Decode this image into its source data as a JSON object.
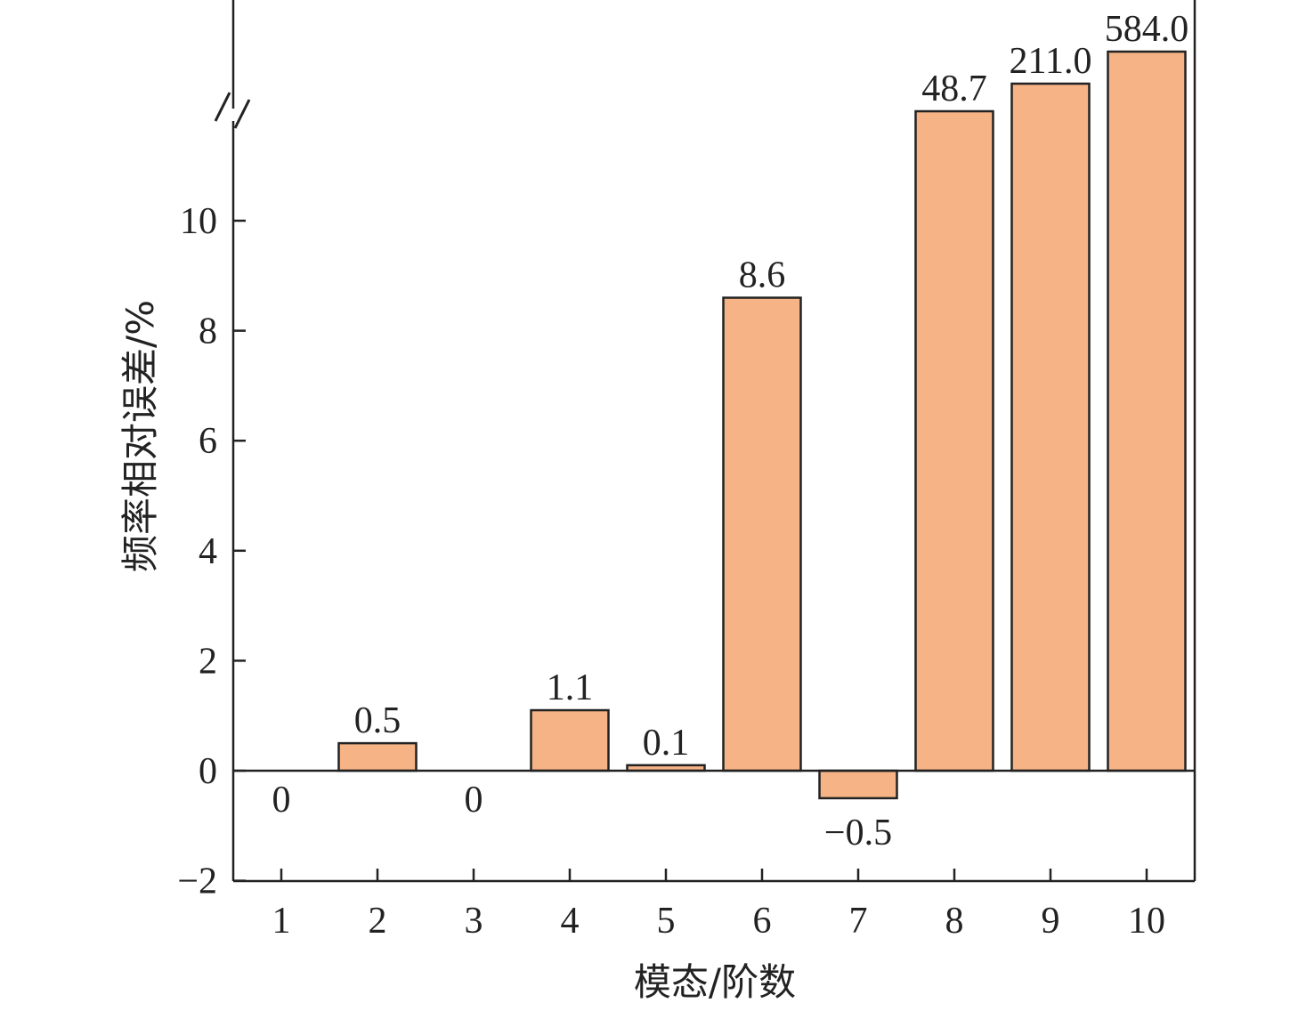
{
  "chart_data": {
    "type": "bar",
    "title": "",
    "xlabel": "模态/阶数",
    "ylabel": "频率相对误差/%",
    "categories": [
      "1",
      "2",
      "3",
      "4",
      "5",
      "6",
      "7",
      "8",
      "9",
      "10"
    ],
    "values": [
      0,
      0.5,
      0,
      1.1,
      0.1,
      8.6,
      -0.5,
      48.7,
      211.0,
      584.0
    ],
    "data_labels": [
      "0",
      "0.5",
      "0",
      "1.1",
      "0.1",
      "8.6",
      "−0.5",
      "48.7",
      "211.0",
      "584.0"
    ],
    "ylim": [
      -2,
      12
    ],
    "yticks": [
      -2,
      0,
      2,
      4,
      6,
      8,
      10
    ],
    "ytick_labels": [
      "−2",
      "0",
      "2",
      "4",
      "6",
      "8",
      "10"
    ],
    "axis_break": true,
    "grid": false,
    "legend": "none",
    "colors": {
      "bar_fill": "#f5b386",
      "bar_stroke": "#222222",
      "axis": "#222222"
    }
  }
}
